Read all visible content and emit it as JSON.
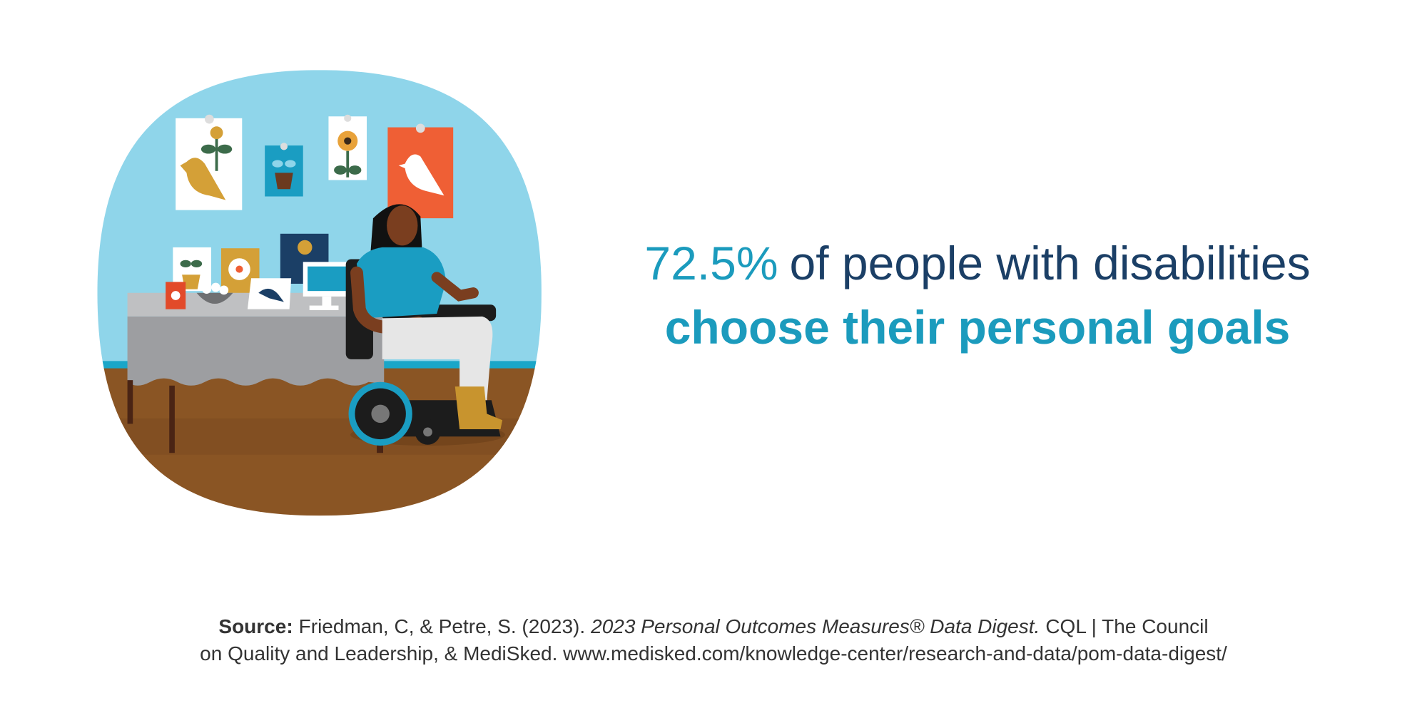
{
  "headline": {
    "stat": "72.5%",
    "line1_rest": "of people with disabilities",
    "line2": "choose their personal goals"
  },
  "source": {
    "label": "Source:",
    "authors": "Friedman, C, & Petre, S. (2023).",
    "title": "2023 Personal Outcomes Measures® Data Digest.",
    "publisher_line1": "CQL | The Council",
    "publisher_line2": "on Quality and Leadership, & MediSked. www.medisked.com/knowledge-center/research-and-data/pom-data-digest/"
  }
}
